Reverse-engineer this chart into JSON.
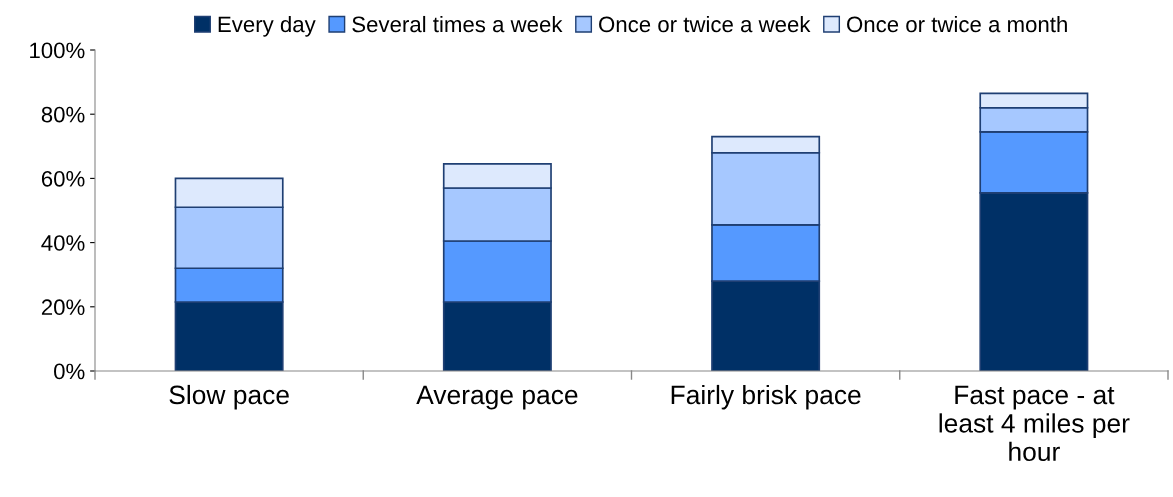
{
  "chart_data": {
    "type": "bar",
    "stacked": true,
    "categories": [
      "Slow pace",
      "Average pace",
      "Fairly brisk pace",
      "Fast pace - at\nleast 4 miles per\nhour"
    ],
    "series": [
      {
        "name": "Every day",
        "color": "#003066",
        "values": [
          21.5,
          21.5,
          28,
          55.5
        ]
      },
      {
        "name": "Several times a week",
        "color": "#5599ff",
        "values": [
          10.5,
          19,
          17.5,
          19
        ]
      },
      {
        "name": "Once or twice a week",
        "color": "#a6c8ff",
        "values": [
          19,
          16.5,
          22.5,
          7.5
        ]
      },
      {
        "name": "Once or twice a month",
        "color": "#dde9fd",
        "values": [
          9,
          7.5,
          5,
          4.5
        ]
      }
    ],
    "ylim": [
      0,
      100
    ],
    "yticks": [
      {
        "value": 0,
        "label": "0%"
      },
      {
        "value": 20,
        "label": "20%"
      },
      {
        "value": 40,
        "label": "40%"
      },
      {
        "value": 60,
        "label": "60%"
      },
      {
        "value": 80,
        "label": "80%"
      },
      {
        "value": 100,
        "label": "100%"
      }
    ],
    "grid": false,
    "legend": "top"
  }
}
